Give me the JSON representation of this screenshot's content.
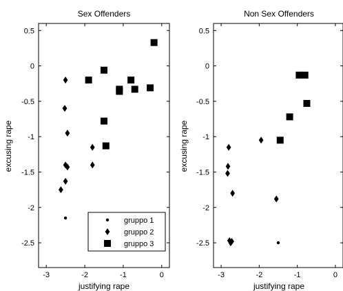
{
  "chart_data": [
    {
      "type": "scatter",
      "title": "Sex Offenders",
      "xlabel": "justifying rape",
      "ylabel": "excusing rape",
      "xlim": [
        -3.2,
        0.2
      ],
      "ylim": [
        -2.85,
        0.6
      ],
      "xticks": [
        -3,
        -2,
        -1,
        0
      ],
      "yticks": [
        0.5,
        0,
        -0.5,
        -1,
        -1.5,
        -2,
        -2.5
      ],
      "grid": false,
      "legend": "bottom-right",
      "series": [
        {
          "name": "gruppo 1",
          "marker": "dot",
          "points": [
            [
              -2.5,
              -2.15
            ]
          ]
        },
        {
          "name": "gruppo 2",
          "marker": "diamond",
          "points": [
            [
              -2.5,
              -0.2
            ],
            [
              -2.52,
              -0.6
            ],
            [
              -2.45,
              -0.95
            ],
            [
              -1.8,
              -1.15
            ],
            [
              -2.5,
              -1.4
            ],
            [
              -2.45,
              -1.43
            ],
            [
              -1.8,
              -1.4
            ],
            [
              -2.5,
              -1.63
            ],
            [
              -2.62,
              -1.75
            ]
          ]
        },
        {
          "name": "gruppo 3",
          "marker": "square",
          "points": [
            [
              -0.2,
              0.33
            ],
            [
              -1.5,
              -0.06
            ],
            [
              -1.9,
              -0.2
            ],
            [
              -0.8,
              -0.2
            ],
            [
              -1.1,
              -0.33
            ],
            [
              -1.1,
              -0.36
            ],
            [
              -0.7,
              -0.33
            ],
            [
              -0.3,
              -0.31
            ],
            [
              -1.5,
              -0.78
            ],
            [
              -1.45,
              -1.13
            ]
          ]
        }
      ]
    },
    {
      "type": "scatter",
      "title": "Non Sex Offenders",
      "xlabel": "justifying rape",
      "ylabel": "excusing rape",
      "xlim": [
        -3.2,
        0.2
      ],
      "ylim": [
        -2.85,
        0.6
      ],
      "xticks": [
        -3,
        -2,
        -1,
        0
      ],
      "yticks": [
        0.5,
        0,
        -0.5,
        -1,
        -1.5,
        -2,
        -2.5
      ],
      "grid": false,
      "series": [
        {
          "name": "gruppo 1",
          "marker": "dot",
          "points": [
            [
              -1.5,
              -2.5
            ]
          ]
        },
        {
          "name": "gruppo 2",
          "marker": "diamond",
          "points": [
            [
              -2.8,
              -1.15
            ],
            [
              -2.82,
              -1.42
            ],
            [
              -2.83,
              -1.52
            ],
            [
              -2.7,
              -1.8
            ],
            [
              -2.78,
              -2.47
            ],
            [
              -2.75,
              -2.5
            ],
            [
              -2.72,
              -2.48
            ],
            [
              -1.95,
              -1.05
            ],
            [
              -1.55,
              -1.88
            ]
          ]
        },
        {
          "name": "gruppo 3",
          "marker": "square",
          "points": [
            [
              -0.95,
              -0.13
            ],
            [
              -0.8,
              -0.13
            ],
            [
              -0.75,
              -0.53
            ],
            [
              -1.2,
              -0.72
            ],
            [
              -1.45,
              -1.05
            ]
          ]
        }
      ]
    }
  ]
}
